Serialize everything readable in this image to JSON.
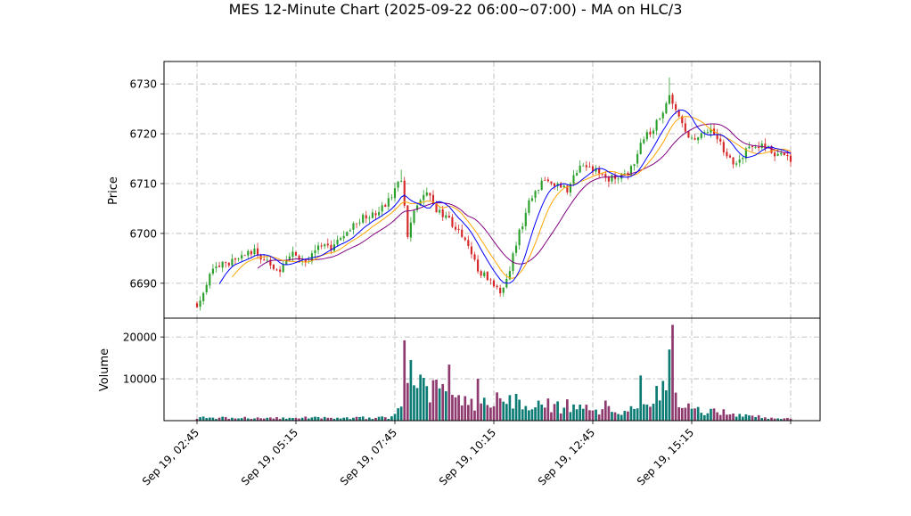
{
  "chart_data": {
    "type": "candlestick",
    "title": "MES 12-Minute Chart (2025-09-22 06:00~07:00) - MA on HLC/3",
    "price_panel": {
      "ylabel": "Price",
      "yticks": [
        6690,
        6700,
        6710,
        6720,
        6730
      ],
      "ylim": [
        6683,
        6734.5
      ],
      "grid": true
    },
    "volume_panel": {
      "ylabel": "Volume",
      "yticks": [
        10000,
        20000
      ],
      "ytick_labels": [
        "10000",
        "20000"
      ],
      "ylim": [
        0,
        24500
      ],
      "grid": true
    },
    "xtick_labels": [
      "Sep 19, 02:45",
      "Sep 19, 05:15",
      "Sep 19, 07:45",
      "Sep 19, 10:15",
      "Sep 19, 12:45",
      "Sep 19, 15:15",
      ""
    ],
    "colors": {
      "up": "#2ca02c",
      "down": "#d62728",
      "ma_fast": "#0000ff",
      "ma_mid": "#ffa500",
      "ma_slow": "#800080"
    },
    "price_path": [
      [
        0,
        6686
      ],
      [
        2,
        6688
      ],
      [
        4,
        6692
      ],
      [
        7,
        6694
      ],
      [
        10,
        6694
      ],
      [
        14,
        6695
      ],
      [
        18,
        6697
      ],
      [
        22,
        6694
      ],
      [
        26,
        6693
      ],
      [
        30,
        6696
      ],
      [
        34,
        6694
      ],
      [
        38,
        6697
      ],
      [
        42,
        6697
      ],
      [
        46,
        6700
      ],
      [
        52,
        6703
      ],
      [
        58,
        6705
      ],
      [
        64,
        6711
      ],
      [
        66,
        6700
      ],
      [
        68,
        6704
      ],
      [
        72,
        6708
      ],
      [
        76,
        6704
      ],
      [
        80,
        6702
      ],
      [
        84,
        6698
      ],
      [
        88,
        6693
      ],
      [
        92,
        6690
      ],
      [
        95,
        6688
      ],
      [
        98,
        6693
      ],
      [
        101,
        6700
      ],
      [
        104,
        6706
      ],
      [
        108,
        6710
      ],
      [
        112,
        6710
      ],
      [
        116,
        6709
      ],
      [
        120,
        6713
      ],
      [
        124,
        6713
      ],
      [
        128,
        6711
      ],
      [
        132,
        6711
      ],
      [
        136,
        6713
      ],
      [
        140,
        6719
      ],
      [
        144,
        6722
      ],
      [
        148,
        6728
      ],
      [
        150,
        6725
      ],
      [
        152,
        6722
      ],
      [
        154,
        6720
      ],
      [
        156,
        6719
      ],
      [
        160,
        6721
      ],
      [
        164,
        6718
      ],
      [
        168,
        6714
      ],
      [
        170,
        6715
      ],
      [
        174,
        6718
      ],
      [
        178,
        6717
      ],
      [
        182,
        6716
      ],
      [
        186,
        6715
      ]
    ],
    "volume_path": [
      [
        0,
        700
      ],
      [
        60,
        700
      ],
      [
        62,
        1500
      ],
      [
        64,
        5000
      ],
      [
        68,
        9000
      ],
      [
        72,
        7000
      ],
      [
        80,
        7000
      ],
      [
        84,
        4500
      ],
      [
        90,
        4200
      ],
      [
        92,
        5500
      ],
      [
        96,
        5000
      ],
      [
        100,
        4500
      ],
      [
        106,
        3500
      ],
      [
        112,
        3000
      ],
      [
        120,
        2800
      ],
      [
        130,
        2500
      ],
      [
        136,
        2500
      ],
      [
        140,
        3000
      ],
      [
        144,
        4500
      ],
      [
        147,
        7000
      ],
      [
        150,
        5000
      ],
      [
        156,
        2500
      ],
      [
        164,
        2000
      ],
      [
        172,
        1200
      ],
      [
        180,
        700
      ],
      [
        186,
        500
      ]
    ],
    "volume_spikes": [
      [
        65,
        19200
      ],
      [
        66,
        9000
      ],
      [
        67,
        14500
      ],
      [
        70,
        11000
      ],
      [
        75,
        9800
      ],
      [
        79,
        13400
      ],
      [
        88,
        10000
      ],
      [
        100,
        6400
      ],
      [
        110,
        5300
      ],
      [
        113,
        4600
      ],
      [
        116,
        5100
      ],
      [
        128,
        4800
      ],
      [
        139,
        10800
      ],
      [
        144,
        8300
      ],
      [
        146,
        9500
      ],
      [
        148,
        17000
      ],
      [
        149,
        22900
      ],
      [
        150,
        6700
      ]
    ]
  }
}
